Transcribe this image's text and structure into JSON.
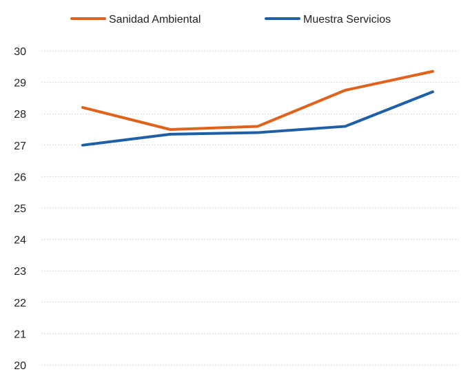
{
  "chart_data": {
    "type": "line",
    "x": [
      1,
      2,
      3,
      4,
      5
    ],
    "ylim": [
      20,
      30
    ],
    "yticks": [
      "20",
      "21",
      "22",
      "23",
      "24",
      "25",
      "26",
      "27",
      "28",
      "29",
      "30"
    ],
    "grid": true,
    "legend_position": "top",
    "series": [
      {
        "name": "Sanidad Ambiental",
        "color": "#e0621c",
        "values": [
          28.2,
          27.5,
          27.6,
          28.75,
          29.35
        ]
      },
      {
        "name": "Muestra Servicios",
        "color": "#1f5fa8",
        "values": [
          27.0,
          27.35,
          27.4,
          27.6,
          28.7
        ]
      }
    ]
  }
}
